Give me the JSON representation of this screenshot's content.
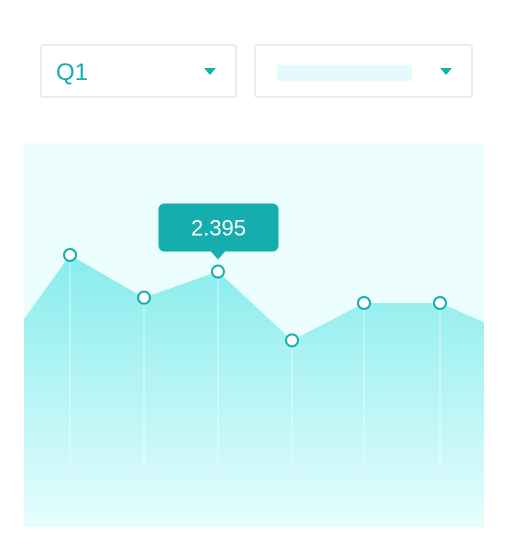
{
  "filters": {
    "quarter": {
      "value": "Q1",
      "icon": "chevron-down-icon"
    },
    "secondary": {
      "value": "",
      "icon": "chevron-down-icon"
    }
  },
  "colors": {
    "accent": "#14aeb1",
    "area_top": "#87ecec",
    "area_bottom": "#e6fdfd",
    "plot_bg": "#edfefe",
    "tooltip_bg": "#15adae"
  },
  "chart_data": {
    "type": "area",
    "points": [
      {
        "value": 2.55
      },
      {
        "value": 2.15
      },
      {
        "value": 2.395
      },
      {
        "value": 1.75
      },
      {
        "value": 2.1
      },
      {
        "value": 2.1
      }
    ],
    "edge_values": {
      "left": 1.95,
      "right": 1.92
    },
    "ylim": [
      0,
      3.6
    ],
    "tooltip": {
      "point_index": 2,
      "label": "2.395"
    },
    "grid": false,
    "legend": "none"
  }
}
